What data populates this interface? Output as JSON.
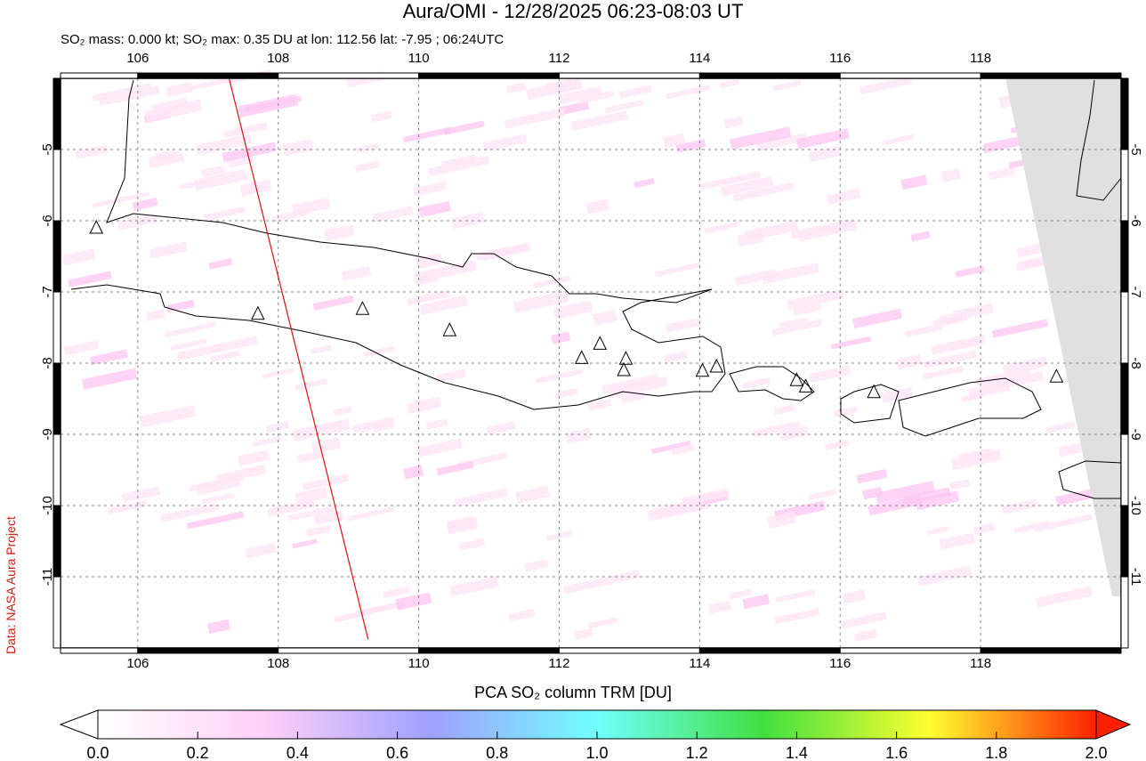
{
  "title": "Aura/OMI - 12/28/2025 06:23-08:03 UT",
  "subtitle": "SO₂ mass: 0.000 kt; SO₂ max: 0.35 DU at lon: 112.56 lat: -7.95 ; 06:24UTC",
  "credit": "Data: NASA Aura Project",
  "map": {
    "lon_range": [
      104.9,
      120
    ],
    "lat_range": [
      -12,
      -4
    ],
    "lon_ticks": [
      106,
      108,
      110,
      112,
      114,
      116,
      118
    ],
    "lat_ticks": [
      -5,
      -6,
      -7,
      -8,
      -9,
      -10,
      -11
    ],
    "volcanoes": [
      [
        105.41,
        -6.1
      ],
      [
        107.71,
        -7.31
      ],
      [
        109.2,
        -7.24
      ],
      [
        110.44,
        -7.54
      ],
      [
        112.32,
        -7.93
      ],
      [
        112.58,
        -7.73
      ],
      [
        112.95,
        -7.94
      ],
      [
        112.92,
        -8.1
      ],
      [
        114.04,
        -8.11
      ],
      [
        114.24,
        -8.05
      ],
      [
        115.38,
        -8.24
      ],
      [
        115.51,
        -8.33
      ],
      [
        116.48,
        -8.41
      ],
      [
        119.08,
        -8.19
      ]
    ],
    "orbit_track": [
      [
        107.3,
        -4
      ],
      [
        109.28,
        -11.88
      ]
    ],
    "no_data_color": "#e0e0e0",
    "track_color": "#dd1111"
  },
  "colorbar": {
    "label": "PCA SO₂ column TRM [DU]",
    "min": 0,
    "max": 2,
    "ticks": [
      "0.0",
      "0.2",
      "0.4",
      "0.6",
      "0.8",
      "1.0",
      "1.2",
      "1.4",
      "1.6",
      "1.8",
      "2.0"
    ],
    "colors": [
      "#ffffff",
      "#ffd0f8",
      "#a0a0ff",
      "#70ffff",
      "#40e040",
      "#ffff30",
      "#ff2000"
    ]
  }
}
